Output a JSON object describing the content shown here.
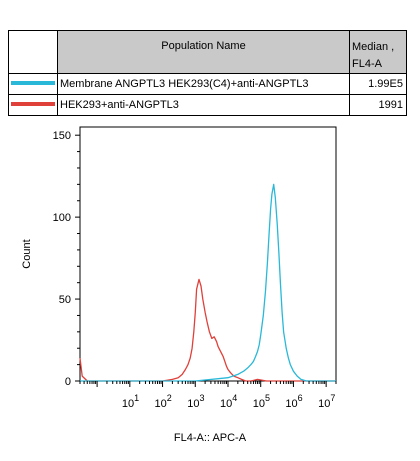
{
  "legend": {
    "header_name": "Population Name",
    "header_median": "Median , FL4-A",
    "rows": [
      {
        "name": "Membrane ANGPTL3 HEK293(C4)+anti-ANGPTL3",
        "median": "1.99E5",
        "color": "#29b8d8"
      },
      {
        "name": "HEK293+anti-ANGPTL3",
        "median": "1991",
        "color": "#e0403a"
      }
    ]
  },
  "chart_data": {
    "type": "line",
    "xlabel": "FL4-A:: APC-A",
    "ylabel": "Count",
    "xscale": "log",
    "xlim": [
      0.3,
      20000000
    ],
    "ylim": [
      0,
      155
    ],
    "xticks": [
      {
        "base": "10",
        "exp": "1"
      },
      {
        "base": "10",
        "exp": "2"
      },
      {
        "base": "10",
        "exp": "3"
      },
      {
        "base": "10",
        "exp": "4"
      },
      {
        "base": "10",
        "exp": "5"
      },
      {
        "base": "10",
        "exp": "6"
      },
      {
        "base": "10",
        "exp": "7"
      }
    ],
    "yticks": [
      0,
      50,
      100,
      150
    ],
    "series": [
      {
        "name": "HEK293+anti-ANGPTL3",
        "color": "#e0403a",
        "x": [
          0.3,
          0.35,
          0.5,
          1,
          10,
          100,
          200,
          300,
          400,
          500,
          600,
          700,
          800,
          900,
          1000,
          1100,
          1300,
          1500,
          1700,
          2000,
          2300,
          2700,
          3200,
          3800,
          4500,
          5000,
          5600,
          6300,
          7100,
          8000,
          9000,
          10000,
          12000,
          15000,
          20000,
          26000,
          35000,
          50000,
          80000,
          150000,
          300000,
          1000000,
          10000000,
          20000000
        ],
        "y": [
          14,
          3,
          0,
          0,
          0,
          0,
          1,
          2,
          4,
          7,
          10,
          14,
          20,
          30,
          42,
          56,
          62,
          58,
          50,
          42,
          36,
          30,
          26,
          27,
          24,
          21,
          19,
          17,
          15,
          12,
          9,
          7,
          5,
          3,
          2,
          1,
          0,
          0,
          1,
          0,
          0,
          0,
          0,
          0
        ]
      },
      {
        "name": "Membrane ANGPTL3 HEK293(C4)+anti-ANGPTL3",
        "color": "#29b8d8",
        "x": [
          0.3,
          1,
          10,
          100,
          1000,
          10000,
          20000,
          30000,
          40000,
          50000,
          60000,
          70000,
          80000,
          90000,
          100000,
          120000,
          140000,
          160000,
          180000,
          200000,
          220000,
          250000,
          280000,
          320000,
          360000,
          400000,
          450000,
          500000,
          600000,
          700000,
          800000,
          1000000,
          1300000,
          1700000,
          2500000,
          4000000,
          10000000,
          20000000
        ],
        "y": [
          0,
          0,
          0,
          0,
          0,
          2,
          4,
          6,
          8,
          10,
          12,
          15,
          18,
          22,
          28,
          40,
          55,
          72,
          90,
          105,
          114,
          120,
          112,
          96,
          78,
          60,
          42,
          30,
          20,
          14,
          10,
          6,
          3,
          1,
          0,
          0,
          0,
          0
        ]
      }
    ]
  }
}
